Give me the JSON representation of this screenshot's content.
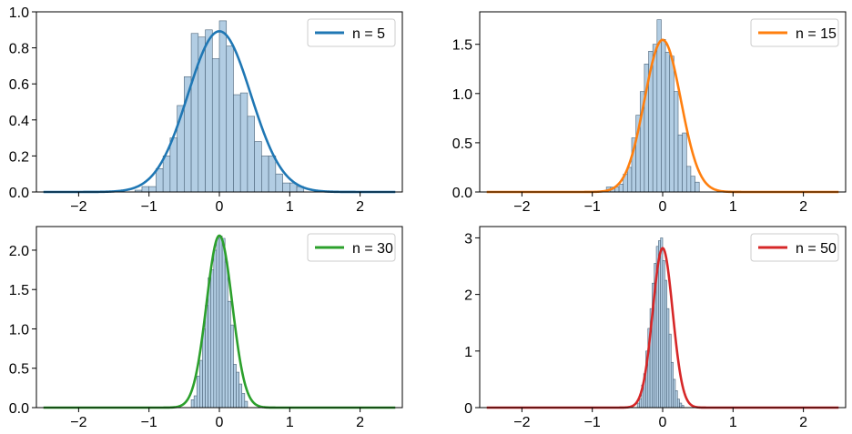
{
  "chart_data": [
    {
      "type": "histogram+line",
      "series": [
        {
          "name": "n = 5",
          "color": "#1f77b4",
          "curve": {
            "std": 0.4472,
            "peak": 0.892,
            "x_range": [
              -2.5,
              2.5
            ]
          },
          "histogram": {
            "bin_start": -1.2,
            "bin_width": 0.1,
            "values": [
              0.01,
              0.03,
              0.03,
              0.13,
              0.2,
              0.3,
              0.48,
              0.64,
              0.88,
              0.86,
              0.9,
              0.74,
              0.95,
              0.81,
              0.54,
              0.55,
              0.42,
              0.28,
              0.2,
              0.2,
              0.1,
              0.05,
              0.05,
              0.03
            ]
          }
        }
      ],
      "xlim": [
        -2.6,
        2.6
      ],
      "ylim": [
        0,
        1.0
      ],
      "xticks": [
        -2,
        -1,
        0,
        1,
        2
      ],
      "yticks": [
        0.0,
        0.2,
        0.4,
        0.6,
        0.8,
        1.0
      ],
      "xtick_labels": [
        "−2",
        "−1",
        "0",
        "1",
        "2"
      ],
      "ytick_labels": [
        "0.0",
        "0.2",
        "0.4",
        "0.6",
        "0.8",
        "1.0"
      ],
      "legend": "top-right",
      "grid": false
    },
    {
      "type": "histogram+line",
      "series": [
        {
          "name": "n = 15",
          "color": "#ff7f0e",
          "curve": {
            "std": 0.2582,
            "peak": 1.545,
            "x_range": [
              -2.5,
              2.5
            ]
          },
          "histogram": {
            "bin_start": -0.8,
            "bin_width": 0.06,
            "values": [
              0.05,
              0.05,
              0.05,
              0.08,
              0.18,
              0.25,
              0.55,
              0.78,
              1.02,
              1.3,
              1.43,
              1.5,
              1.75,
              1.55,
              1.42,
              1.38,
              1.02,
              0.58,
              0.6,
              0.26,
              0.16,
              0.1
            ]
          }
        }
      ],
      "xlim": [
        -2.6,
        2.6
      ],
      "ylim": [
        0,
        1.83
      ],
      "xticks": [
        -2,
        -1,
        0,
        1,
        2
      ],
      "yticks": [
        0.0,
        0.5,
        1.0,
        1.5
      ],
      "xtick_labels": [
        "−2",
        "−1",
        "0",
        "1",
        "2"
      ],
      "ytick_labels": [
        "0.0",
        "0.5",
        "1.0",
        "1.5"
      ],
      "legend": "top-right",
      "grid": false
    },
    {
      "type": "histogram+line",
      "series": [
        {
          "name": "n = 30",
          "color": "#2ca02c",
          "curve": {
            "std": 0.1826,
            "peak": 2.185,
            "x_range": [
              -2.5,
              2.5
            ]
          },
          "histogram": {
            "bin_start": -0.4,
            "bin_width": 0.04,
            "values": [
              0.1,
              0.15,
              0.4,
              0.6,
              1.0,
              1.3,
              1.65,
              1.75,
              2.0,
              2.15,
              2.18,
              2.15,
              1.85,
              1.35,
              1.05,
              0.55,
              0.45,
              0.3,
              0.18,
              0.08
            ]
          }
        }
      ],
      "xlim": [
        -2.6,
        2.6
      ],
      "ylim": [
        0,
        2.3
      ],
      "xticks": [
        -2,
        -1,
        0,
        1,
        2
      ],
      "yticks": [
        0.0,
        0.5,
        1.0,
        1.5,
        2.0
      ],
      "xtick_labels": [
        "−2",
        "−1",
        "0",
        "1",
        "2"
      ],
      "ytick_labels": [
        "0.0",
        "0.5",
        "1.0",
        "1.5",
        "2.0"
      ],
      "legend": "top-right",
      "grid": false
    },
    {
      "type": "histogram+line",
      "series": [
        {
          "name": "n = 50",
          "color": "#d62728",
          "curve": {
            "std": 0.1414,
            "peak": 2.82,
            "x_range": [
              -2.5,
              2.5
            ]
          },
          "histogram": {
            "bin_start": -0.36,
            "bin_width": 0.03,
            "values": [
              0.08,
              0.15,
              0.4,
              0.6,
              1.0,
              1.4,
              1.75,
              2.2,
              2.55,
              2.85,
              2.95,
              3.0,
              2.6,
              2.25,
              1.75,
              1.3,
              0.8,
              0.5,
              0.3,
              0.15,
              0.08,
              0.04
            ]
          }
        }
      ],
      "xlim": [
        -2.6,
        2.6
      ],
      "ylim": [
        0,
        3.2
      ],
      "xticks": [
        -2,
        -1,
        0,
        1,
        2
      ],
      "yticks": [
        0,
        1,
        2,
        3
      ],
      "xtick_labels": [
        "−2",
        "−1",
        "0",
        "1",
        "2"
      ],
      "ytick_labels": [
        "0",
        "1",
        "2",
        "3"
      ],
      "legend": "top-right",
      "grid": false
    }
  ],
  "style": {
    "bar_fill": "#b2cde3",
    "bar_edge": "#4a6378",
    "axis_color": "#000000",
    "legend_border": "#cccccc"
  }
}
